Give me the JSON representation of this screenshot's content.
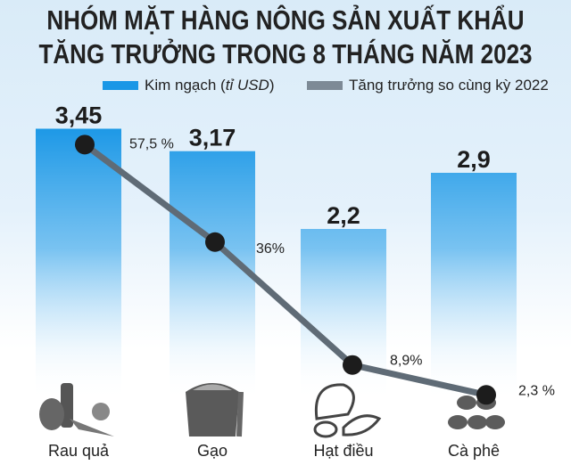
{
  "title_line1": "NHÓM MẶT HÀNG NÔNG SẢN XUẤT KHẨU",
  "title_line2": "TĂNG TRƯỞNG TRONG 8 THÁNG NĂM 2023",
  "chart_data": {
    "type": "bar+line",
    "title": "NHÓM MẶT HÀNG NÔNG SẢN XUẤT KHẨU TĂNG TRƯỞNG TRONG 8 THÁNG NĂM 2023",
    "categories": [
      "Rau quả",
      "Gạo",
      "Hạt điều",
      "Cà phê"
    ],
    "series": [
      {
        "name": "Kim ngạch (tỉ USD)",
        "type": "bar",
        "values": [
          3.45,
          3.17,
          2.2,
          2.9
        ],
        "labels": [
          "3,45",
          "3,17",
          "2,2",
          "2,9"
        ],
        "color": "#1a97e6"
      },
      {
        "name": "Tăng trưởng so cùng kỳ 2022",
        "type": "line",
        "values": [
          57.5,
          36,
          8.9,
          2.3
        ],
        "labels": [
          "57,5 %",
          "36%",
          "8,9%",
          "2,3 %"
        ],
        "color": "#5f6b76"
      }
    ],
    "legend": {
      "position": "top",
      "bar_label": "Kim ngạch",
      "bar_label_unit": "tỉ USD",
      "line_label": "Tăng trưởng so cùng kỳ 2022"
    },
    "grid": false,
    "icons": [
      "vegetables-icon",
      "rice-sack-icon",
      "cashew-icon",
      "coffee-beans-icon"
    ]
  }
}
